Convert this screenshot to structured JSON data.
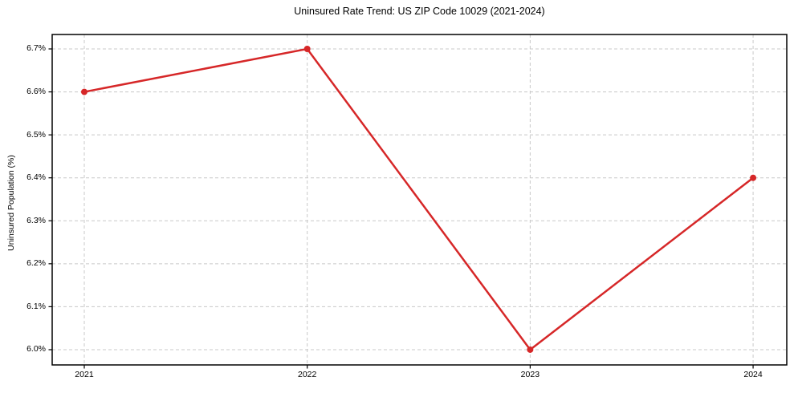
{
  "chart_data": {
    "type": "line",
    "title": "Uninsured Rate Trend: US ZIP Code 10029 (2021-2024)",
    "xlabel": "",
    "ylabel": "Uninsured Population (%)",
    "x": [
      2021,
      2022,
      2023,
      2024
    ],
    "values": [
      6.6,
      6.7,
      6.0,
      6.4
    ],
    "xticks": [
      {
        "value": 2021,
        "label": "2021"
      },
      {
        "value": 2022,
        "label": "2022"
      },
      {
        "value": 2023,
        "label": "2023"
      },
      {
        "value": 2024,
        "label": "2024"
      }
    ],
    "yticks": [
      {
        "value": 6.0,
        "label": "6.0%"
      },
      {
        "value": 6.1,
        "label": "6.1%"
      },
      {
        "value": 6.2,
        "label": "6.2%"
      },
      {
        "value": 6.3,
        "label": "6.3%"
      },
      {
        "value": 6.4,
        "label": "6.4%"
      },
      {
        "value": 6.5,
        "label": "6.5%"
      },
      {
        "value": 6.6,
        "label": "6.6%"
      },
      {
        "value": 6.7,
        "label": "6.7%"
      }
    ],
    "xlim": [
      2020.856,
      2024.151
    ],
    "ylim": [
      5.9645,
      6.7336
    ],
    "grid": true,
    "grid_style": "dashed",
    "legend": false,
    "marker": "circle",
    "colors": {
      "line": "#d62728",
      "marker": "#d62728",
      "grid": "#c8c8c8",
      "spine": "#000000",
      "text": "#000000",
      "background": "#ffffff"
    }
  }
}
